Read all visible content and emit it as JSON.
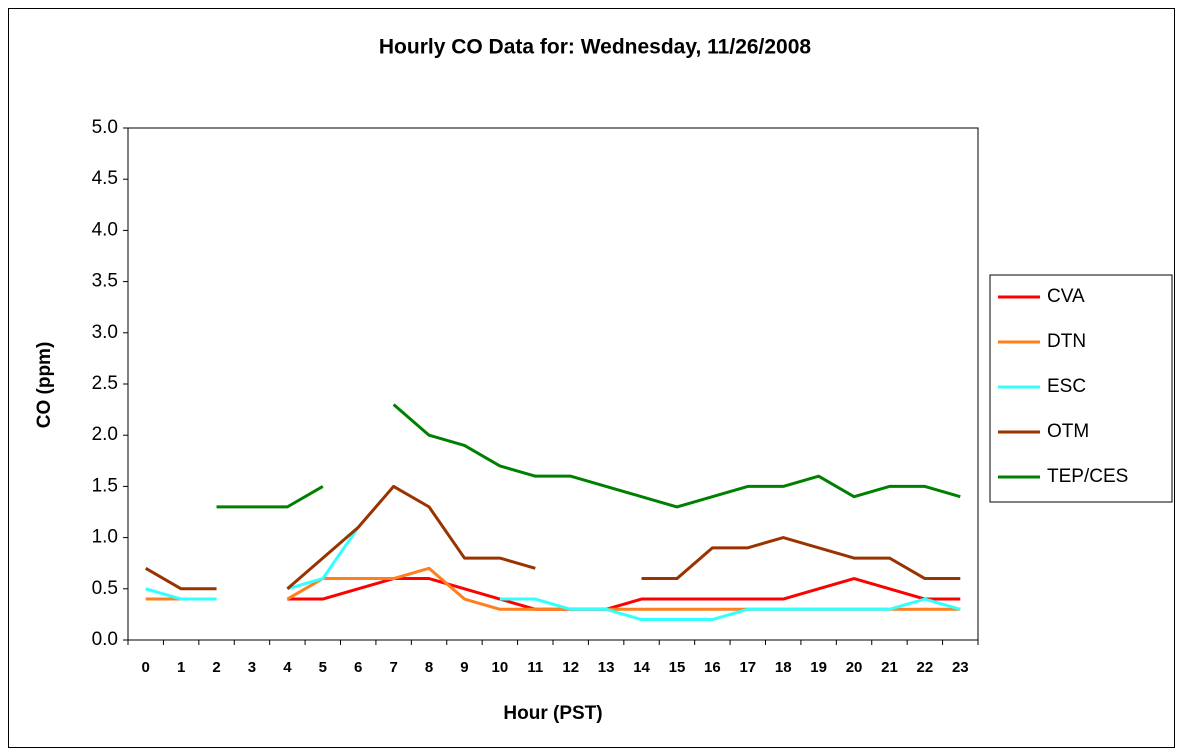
{
  "chart_data": {
    "type": "line",
    "title": "Hourly CO Data for: Wednesday, 11/26/2008",
    "x_label": "Hour (PST)",
    "y_label": "CO (ppm)",
    "categories": [
      "0",
      "1",
      "2",
      "3",
      "4",
      "5",
      "6",
      "7",
      "8",
      "9",
      "10",
      "11",
      "12",
      "13",
      "14",
      "15",
      "16",
      "17",
      "18",
      "19",
      "20",
      "21",
      "22",
      "23"
    ],
    "ylim": [
      0,
      5
    ],
    "yticks": [
      {
        "value": 0,
        "label": "0.0"
      },
      {
        "value": 0.5,
        "label": "0.5"
      },
      {
        "value": 1,
        "label": "1.0"
      },
      {
        "value": 1.5,
        "label": "1.5"
      },
      {
        "value": 2,
        "label": "2.0"
      },
      {
        "value": 2.5,
        "label": "2.5"
      },
      {
        "value": 3,
        "label": "3.0"
      },
      {
        "value": 3.5,
        "label": "3.5"
      },
      {
        "value": 4,
        "label": "4.0"
      },
      {
        "value": 4.5,
        "label": "4.5"
      },
      {
        "value": 5,
        "label": "5.0"
      }
    ],
    "grid": false,
    "legend": "right",
    "series": [
      {
        "name": "CVA",
        "color": "#ff0000",
        "values": [
          null,
          null,
          null,
          null,
          0.4,
          0.4,
          0.5,
          0.6,
          0.6,
          0.5,
          0.4,
          0.3,
          0.3,
          0.3,
          0.4,
          0.4,
          0.4,
          0.4,
          0.4,
          0.5,
          0.6,
          0.5,
          0.4,
          0.4
        ]
      },
      {
        "name": "DTN",
        "color": "#ff7f1f",
        "values": [
          0.4,
          0.4,
          0.4,
          null,
          0.4,
          0.6,
          0.6,
          0.6,
          0.7,
          0.4,
          0.3,
          0.3,
          0.3,
          0.3,
          0.3,
          0.3,
          0.3,
          0.3,
          0.3,
          0.3,
          0.3,
          0.3,
          0.3,
          0.3
        ]
      },
      {
        "name": "ESC",
        "color": "#33ffff",
        "values": [
          0.5,
          0.4,
          0.4,
          null,
          0.5,
          0.6,
          1.1,
          null,
          null,
          null,
          0.4,
          0.4,
          0.3,
          0.3,
          0.2,
          0.2,
          0.2,
          0.3,
          0.3,
          0.3,
          0.3,
          0.3,
          0.4,
          0.3
        ]
      },
      {
        "name": "OTM",
        "color": "#993300",
        "values": [
          0.7,
          0.5,
          0.5,
          null,
          0.5,
          0.8,
          1.1,
          1.5,
          1.3,
          0.8,
          0.8,
          0.7,
          null,
          null,
          0.6,
          0.6,
          0.9,
          0.9,
          1.0,
          0.9,
          0.8,
          0.8,
          0.6,
          0.6
        ]
      },
      {
        "name": "TEP/CES",
        "color": "#008000",
        "values": [
          null,
          null,
          1.3,
          1.3,
          1.3,
          1.5,
          null,
          2.3,
          2.0,
          1.9,
          1.7,
          1.6,
          1.6,
          1.5,
          1.4,
          1.3,
          1.4,
          1.5,
          1.5,
          1.6,
          1.4,
          1.5,
          1.5,
          1.4
        ]
      }
    ]
  }
}
